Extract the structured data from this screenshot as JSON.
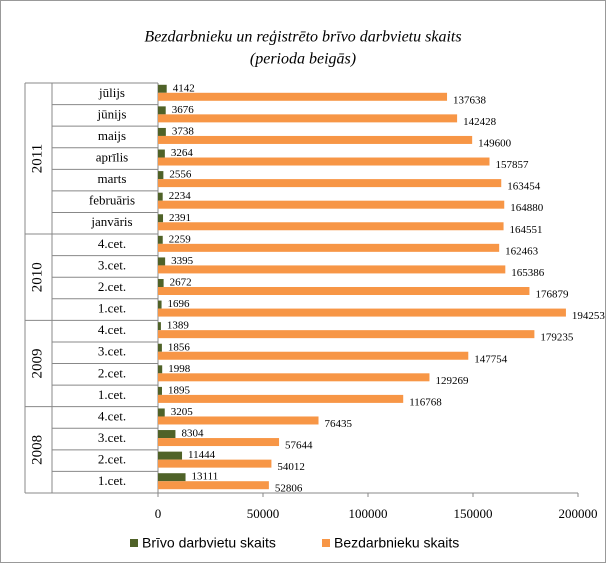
{
  "chart_data": {
    "type": "bar",
    "orientation": "horizontal",
    "title": "Bezdarbnieku un reģistrēto brīvo darbvietu skaits",
    "subtitle": "(perioda beigās)",
    "groups": [
      {
        "name": "2011",
        "categories": [
          "jūlijs",
          "jūnijs",
          "maijs",
          "aprīlis",
          "marts",
          "februāris",
          "janvāris"
        ]
      },
      {
        "name": "2010",
        "categories": [
          "4.cet.",
          "3.cet.",
          "2.cet.",
          "1.cet."
        ]
      },
      {
        "name": "2009",
        "categories": [
          "4.cet.",
          "3.cet.",
          "2.cet.",
          "1.cet."
        ]
      },
      {
        "name": "2008",
        "categories": [
          "4.cet.",
          "3.cet.",
          "2.cet.",
          "1.cet."
        ]
      }
    ],
    "series": [
      {
        "name": "Brīvo darbvietu skaits",
        "color": "#4f6228",
        "values": [
          4142,
          3676,
          3738,
          3264,
          2556,
          2234,
          2391,
          2259,
          3395,
          2672,
          1696,
          1389,
          1856,
          1998,
          1895,
          3205,
          8304,
          11444,
          13111
        ]
      },
      {
        "name": "Bezdarbnieku skaits",
        "color": "#f79646",
        "values": [
          137638,
          142428,
          149600,
          157857,
          163454,
          164880,
          164551,
          162463,
          165386,
          176879,
          194253,
          179235,
          147754,
          129269,
          116768,
          76435,
          57644,
          54012,
          52806
        ]
      }
    ],
    "xlim": [
      0,
      200000
    ],
    "xticks": [
      0,
      50000,
      100000,
      150000,
      200000
    ],
    "legend": "bottom"
  }
}
